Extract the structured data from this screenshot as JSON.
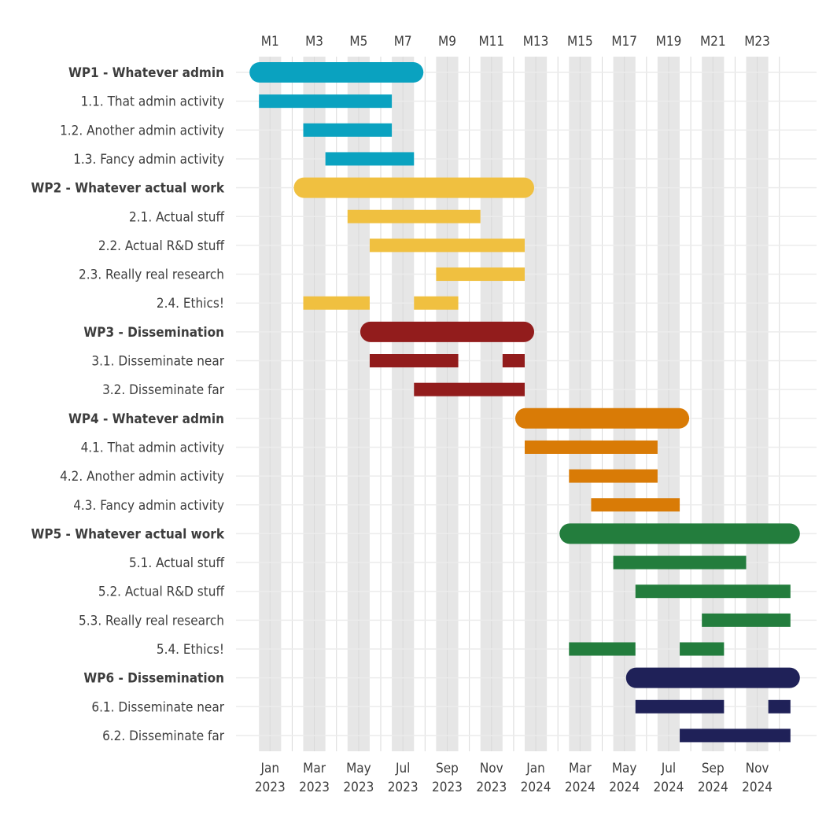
{
  "chart_data": {
    "type": "gantt",
    "title": "",
    "x_unit": "month (1 = Jan 2023)",
    "xlim": [
      0.5,
      24.5
    ],
    "top_axis_ticks": [
      {
        "month": 1,
        "label": "M1"
      },
      {
        "month": 3,
        "label": "M3"
      },
      {
        "month": 5,
        "label": "M5"
      },
      {
        "month": 7,
        "label": "M7"
      },
      {
        "month": 9,
        "label": "M9"
      },
      {
        "month": 11,
        "label": "M11"
      },
      {
        "month": 13,
        "label": "M13"
      },
      {
        "month": 15,
        "label": "M15"
      },
      {
        "month": 17,
        "label": "M17"
      },
      {
        "month": 19,
        "label": "M19"
      },
      {
        "month": 21,
        "label": "M21"
      },
      {
        "month": 23,
        "label": "M23"
      }
    ],
    "bottom_axis_ticks": [
      {
        "month": 1,
        "month_label": "Jan",
        "year_label": "2023"
      },
      {
        "month": 3,
        "month_label": "Mar",
        "year_label": "2023"
      },
      {
        "month": 5,
        "month_label": "May",
        "year_label": "2023"
      },
      {
        "month": 7,
        "month_label": "Jul",
        "year_label": "2023"
      },
      {
        "month": 9,
        "month_label": "Sep",
        "year_label": "2023"
      },
      {
        "month": 11,
        "month_label": "Nov",
        "year_label": "2023"
      },
      {
        "month": 13,
        "month_label": "Jan",
        "year_label": "2024"
      },
      {
        "month": 15,
        "month_label": "Mar",
        "year_label": "2024"
      },
      {
        "month": 17,
        "month_label": "May",
        "year_label": "2024"
      },
      {
        "month": 19,
        "month_label": "Jul",
        "year_label": "2024"
      },
      {
        "month": 21,
        "month_label": "Sep",
        "year_label": "2024"
      },
      {
        "month": 23,
        "month_label": "Nov",
        "year_label": "2024"
      }
    ],
    "shaded_month_bands": [
      1,
      3,
      5,
      7,
      9,
      11,
      13,
      15,
      17,
      19,
      21,
      23
    ],
    "rows": [
      {
        "label": "WP1 - Whatever admin",
        "wp": true,
        "color": "#0aa2c0",
        "segments": [
          [
            1,
            8
          ]
        ]
      },
      {
        "label": "1.1. That admin activity",
        "color": "#0aa2c0",
        "segments": [
          [
            1,
            7
          ]
        ]
      },
      {
        "label": "1.2. Another admin activity",
        "color": "#0aa2c0",
        "segments": [
          [
            3,
            7
          ]
        ]
      },
      {
        "label": "1.3. Fancy admin activity",
        "color": "#0aa2c0",
        "segments": [
          [
            4,
            8
          ]
        ]
      },
      {
        "label": "WP2 - Whatever actual work",
        "wp": true,
        "color": "#f0c040",
        "segments": [
          [
            3,
            13
          ]
        ]
      },
      {
        "label": "2.1. Actual stuff",
        "color": "#f0c040",
        "segments": [
          [
            5,
            11
          ]
        ]
      },
      {
        "label": "2.2. Actual R&D stuff",
        "color": "#f0c040",
        "segments": [
          [
            6,
            13
          ]
        ]
      },
      {
        "label": "2.3. Really real research",
        "color": "#f0c040",
        "segments": [
          [
            9,
            13
          ]
        ]
      },
      {
        "label": "2.4. Ethics!",
        "color": "#f0c040",
        "segments": [
          [
            3,
            6
          ],
          [
            8,
            10
          ]
        ]
      },
      {
        "label": "WP3 - Dissemination",
        "wp": true,
        "color": "#921c1c",
        "segments": [
          [
            6,
            13
          ]
        ]
      },
      {
        "label": "3.1. Disseminate near",
        "color": "#921c1c",
        "segments": [
          [
            6,
            10
          ],
          [
            12,
            13
          ]
        ]
      },
      {
        "label": "3.2. Disseminate far",
        "color": "#921c1c",
        "segments": [
          [
            8,
            13
          ]
        ]
      },
      {
        "label": "WP4 - Whatever admin",
        "wp": true,
        "color": "#d97b06",
        "segments": [
          [
            13,
            20
          ]
        ]
      },
      {
        "label": "4.1. That admin activity",
        "color": "#d97b06",
        "segments": [
          [
            13,
            19
          ]
        ]
      },
      {
        "label": "4.2. Another admin activity",
        "color": "#d97b06",
        "segments": [
          [
            15,
            19
          ]
        ]
      },
      {
        "label": "4.3. Fancy admin activity",
        "color": "#d97b06",
        "segments": [
          [
            16,
            20
          ]
        ]
      },
      {
        "label": "WP5 - Whatever actual work",
        "wp": true,
        "color": "#237d3d",
        "segments": [
          [
            15,
            25
          ]
        ]
      },
      {
        "label": "5.1. Actual stuff",
        "color": "#237d3d",
        "segments": [
          [
            17,
            23
          ]
        ]
      },
      {
        "label": "5.2. Actual R&D stuff",
        "color": "#237d3d",
        "segments": [
          [
            18,
            25
          ]
        ]
      },
      {
        "label": "5.3. Really real research",
        "color": "#237d3d",
        "segments": [
          [
            21,
            25
          ]
        ]
      },
      {
        "label": "5.4. Ethics!",
        "color": "#237d3d",
        "segments": [
          [
            15,
            18
          ],
          [
            20,
            22
          ]
        ]
      },
      {
        "label": "WP6 - Dissemination",
        "wp": true,
        "color": "#1f2158",
        "segments": [
          [
            18,
            25
          ]
        ]
      },
      {
        "label": "6.1. Disseminate near",
        "color": "#1f2158",
        "segments": [
          [
            18,
            22
          ],
          [
            24,
            25
          ]
        ]
      },
      {
        "label": "6.2. Disseminate far",
        "color": "#1f2158",
        "segments": [
          [
            20,
            25
          ]
        ]
      }
    ]
  }
}
